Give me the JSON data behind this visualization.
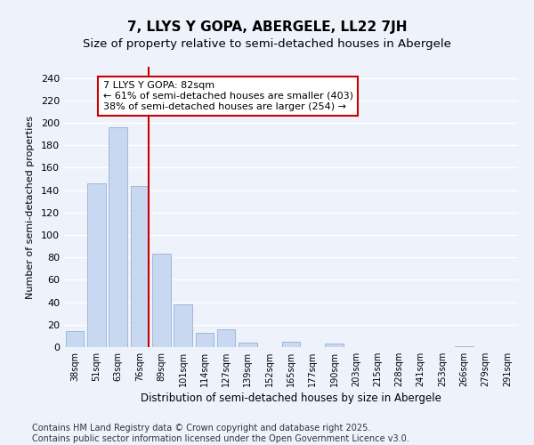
{
  "title": "7, LLYS Y GOPA, ABERGELE, LL22 7JH",
  "subtitle": "Size of property relative to semi-detached houses in Abergele",
  "xlabel": "Distribution of semi-detached houses by size in Abergele",
  "ylabel": "Number of semi-detached properties",
  "categories": [
    "38sqm",
    "51sqm",
    "63sqm",
    "76sqm",
    "89sqm",
    "101sqm",
    "114sqm",
    "127sqm",
    "139sqm",
    "152sqm",
    "165sqm",
    "177sqm",
    "190sqm",
    "203sqm",
    "215sqm",
    "228sqm",
    "241sqm",
    "253sqm",
    "266sqm",
    "279sqm",
    "291sqm"
  ],
  "values": [
    14,
    146,
    196,
    144,
    83,
    38,
    13,
    16,
    4,
    0,
    5,
    0,
    3,
    0,
    0,
    0,
    0,
    0,
    1,
    0,
    0
  ],
  "bar_color": "#c8d8f0",
  "bar_edge_color": "#a0b8d8",
  "vline_x_index": 3,
  "vline_color": "#cc0000",
  "annotation_line1": "7 LLYS Y GOPA: 82sqm",
  "annotation_line2": "← 61% of semi-detached houses are smaller (403)",
  "annotation_line3": "38% of semi-detached houses are larger (254) →",
  "annotation_box_color": "#ffffff",
  "annotation_box_edge_color": "#cc0000",
  "ylim": [
    0,
    250
  ],
  "yticks": [
    0,
    20,
    40,
    60,
    80,
    100,
    120,
    140,
    160,
    180,
    200,
    220,
    240
  ],
  "footer_text": "Contains HM Land Registry data © Crown copyright and database right 2025.\nContains public sector information licensed under the Open Government Licence v3.0.",
  "background_color": "#eef2fb",
  "grid_color": "#ffffff",
  "title_fontsize": 11,
  "subtitle_fontsize": 9.5,
  "annotation_fontsize": 8,
  "footer_fontsize": 7,
  "ylabel_fontsize": 8,
  "xlabel_fontsize": 8.5
}
